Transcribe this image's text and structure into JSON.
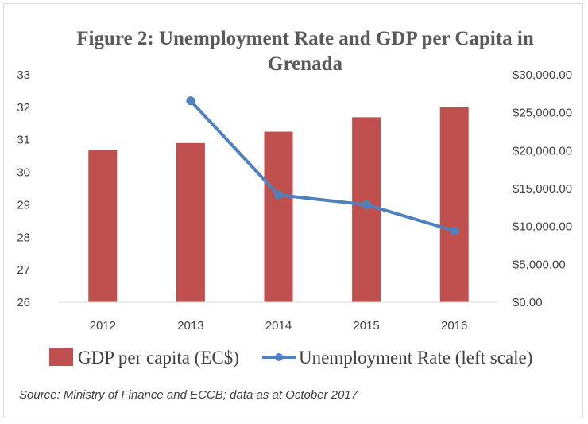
{
  "chart_data": {
    "type": "bar",
    "title_line1": "Figure 2: Unemployment Rate and GDP per Capita  in",
    "title_line2": "Grenada",
    "categories": [
      "2012",
      "2013",
      "2014",
      "2015",
      "2016"
    ],
    "series": [
      {
        "name": "GDP per capita (EC$)",
        "type": "bar",
        "axis": "right",
        "color": "#c0504d",
        "values": [
          20100,
          21000,
          22500,
          24400,
          25700
        ]
      },
      {
        "name": "Unemployment Rate (left scale)",
        "type": "line",
        "axis": "left",
        "color": "#4f81bd",
        "values": [
          null,
          32.2,
          29.3,
          29.0,
          28.2
        ]
      }
    ],
    "left_axis": {
      "range": [
        26,
        33
      ],
      "ticks": [
        "26",
        "27",
        "28",
        "29",
        "30",
        "31",
        "32",
        "33"
      ]
    },
    "right_axis": {
      "range": [
        0,
        30000
      ],
      "ticks": [
        "$0.00",
        "$5,000.00",
        "$10,000.00",
        "$15,000.00",
        "$20,000.00",
        "$25,000.00",
        "$30,000.00"
      ]
    },
    "legend_position": "bottom",
    "grid": false
  },
  "source_note": "Source: Ministry of Finance and ECCB; data as at October 2017"
}
